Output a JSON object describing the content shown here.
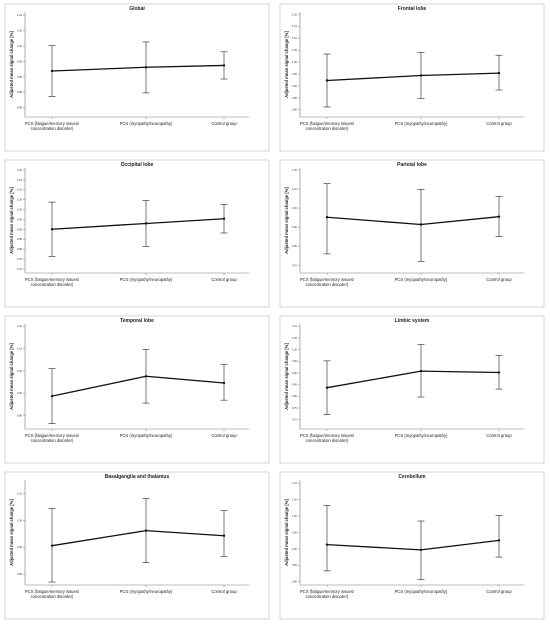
{
  "chart_data": [
    {
      "type": "line",
      "title": "Global",
      "ylabel": "Adjusted mean signal change [%]",
      "categories": [
        "PCS (fatigue/memory issues/concentration disorder)",
        "PCS (myopathy/neuropathy)",
        "Control group"
      ],
      "yticks": [
        "0.80",
        "0.85",
        "0.90",
        "0.95",
        "1.00",
        "1.05",
        "1.10"
      ],
      "ylim": [
        0.77,
        1.11
      ],
      "values": [
        0.919,
        0.931,
        0.937
      ],
      "lower": [
        0.837,
        0.848,
        0.893
      ],
      "upper": [
        1.001,
        1.013,
        0.981
      ],
      "grid": false
    },
    {
      "type": "line",
      "title": "Frontal lobe",
      "ylabel": "Adjusted mean signal change [%]",
      "categories": [
        "PCS (fatigue/memory issues/concentration disorder)",
        "PCS (myopathy/neuropathy)",
        "Control group"
      ],
      "yticks": [
        "0.80",
        "0.85",
        "0.90",
        "0.95",
        "1.00",
        "1.05",
        "1.10",
        "1.15",
        "1.20"
      ],
      "ylim": [
        0.77,
        1.21
      ],
      "values": [
        0.923,
        0.944,
        0.954
      ],
      "lower": [
        0.812,
        0.848,
        0.883
      ],
      "upper": [
        1.034,
        1.04,
        1.029
      ],
      "grid": false
    },
    {
      "type": "line",
      "title": "Occipital lobe",
      "ylabel": "Adjusted mean signal change [%]",
      "categories": [
        "PCS (fatigue/memory issues/concentration disorder)",
        "PCS (myopathy/neuropathy)",
        "Control group"
      ],
      "yticks": [
        "0.70",
        "0.75",
        "0.80",
        "0.85",
        "0.90",
        "0.95",
        "1.00",
        "1.05",
        "1.10",
        "1.15",
        "1.20"
      ],
      "ylim": [
        0.68,
        1.21
      ],
      "values": [
        0.901,
        0.93,
        0.954
      ],
      "lower": [
        0.764,
        0.814,
        0.882
      ],
      "upper": [
        1.038,
        1.046,
        1.026
      ],
      "grid": false
    },
    {
      "type": "line",
      "title": "Parietal lobe",
      "ylabel": "Adjusted mean signal change [%]",
      "categories": [
        "PCS (fatigue/memory issues/concentration disorder)",
        "PCS (myopathy/neuropathy)",
        "Control group"
      ],
      "yticks": [
        "0.70",
        "0.80",
        "0.90",
        "1.00",
        "1.10",
        "1.20"
      ],
      "ylim": [
        0.66,
        1.21
      ],
      "values": [
        0.952,
        0.914,
        0.955
      ],
      "lower": [
        0.76,
        0.72,
        0.851
      ],
      "upper": [
        1.128,
        1.098,
        1.061
      ],
      "grid": false
    },
    {
      "type": "line",
      "title": "Temporal lobe",
      "ylabel": "Adjusted mean signal change [%]",
      "categories": [
        "PCS (fatigue/memory issues/concentration disorder)",
        "PCS (myopathy/neuropathy)",
        "Control group"
      ],
      "yticks": [
        "0.80",
        "0.90",
        "1.00",
        "1.10",
        "1.20"
      ],
      "ylim": [
        0.74,
        1.21
      ],
      "values": [
        0.887,
        0.976,
        0.946
      ],
      "lower": [
        0.764,
        0.856,
        0.869
      ],
      "upper": [
        1.01,
        1.096,
        1.03
      ],
      "grid": false
    },
    {
      "type": "line",
      "title": "Limbic system",
      "ylabel": "Adjusted mean signal change [%]",
      "categories": [
        "PCS (fatigue/memory issues/concentration disorder)",
        "PCS (myopathy/neuropathy)",
        "Control group"
      ],
      "yticks": [
        "0.70",
        "0.75",
        "0.80",
        "0.85",
        "0.90",
        "0.95",
        "1.00",
        "1.05",
        "1.10"
      ],
      "ylim": [
        0.66,
        1.11
      ],
      "values": [
        0.837,
        0.908,
        0.902
      ],
      "lower": [
        0.722,
        0.797,
        0.831
      ],
      "upper": [
        0.952,
        1.022,
        0.976
      ],
      "grid": false
    },
    {
      "type": "line",
      "title": "Basalganglia and thalamus",
      "ylabel": "Adjusted mean signal change [%]",
      "categories": [
        "PCS (fatigue/memory issues/concentration disorder)",
        "PCS (myopathy/neuropathy)",
        "Control group"
      ],
      "yticks": [
        "0.80",
        "0.90",
        "1.00",
        "1.10"
      ],
      "ylim": [
        0.76,
        1.15
      ],
      "values": [
        0.906,
        0.962,
        0.943
      ],
      "lower": [
        0.771,
        0.843,
        0.866
      ],
      "upper": [
        1.045,
        1.081,
        1.036
      ],
      "grid": false
    },
    {
      "type": "line",
      "title": "Cerebellum",
      "ylabel": "Adjusted mean signal change [%]",
      "categories": [
        "PCS (fatigue/memory issues/concentration disorder)",
        "PCS (myopathy/neuropathy)",
        "Control group"
      ],
      "yticks": [
        "0.80",
        "0.85",
        "0.90",
        "0.95",
        "1.00",
        "1.05",
        "1.10"
      ],
      "ylim": [
        0.79,
        1.11
      ],
      "values": [
        0.913,
        0.897,
        0.926
      ],
      "lower": [
        0.833,
        0.806,
        0.875
      ],
      "upper": [
        1.032,
        0.985,
        1.002
      ],
      "grid": false
    }
  ]
}
